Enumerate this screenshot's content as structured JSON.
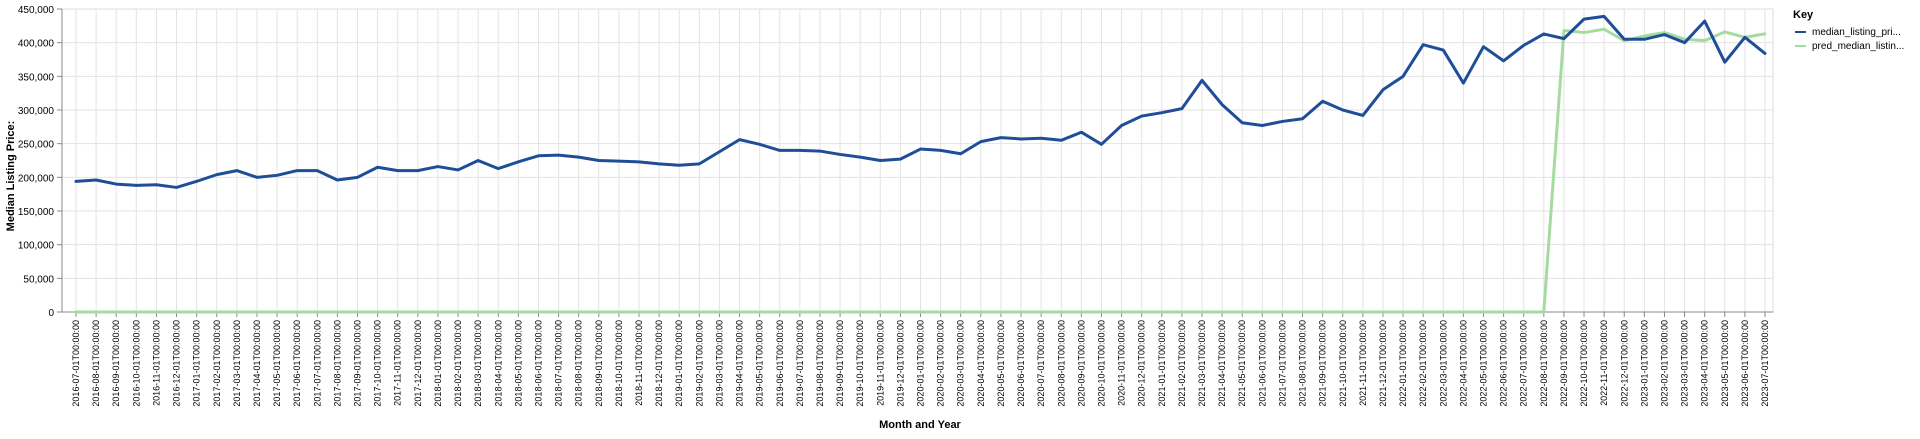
{
  "chart_data": {
    "type": "line",
    "title": "",
    "xlabel": "Month and Year",
    "ylabel": "Median Listing Price:",
    "ylim": [
      0,
      450000
    ],
    "yticks": [
      0,
      50000,
      100000,
      150000,
      200000,
      250000,
      300000,
      350000,
      400000,
      450000
    ],
    "ytick_labels": [
      "0",
      "50,000",
      "100,000",
      "150,000",
      "200,000",
      "250,000",
      "300,000",
      "350,000",
      "400,000",
      "450,000"
    ],
    "grid": true,
    "legend_title": "Key",
    "legend_position": "top-right",
    "x": [
      "2016-07-01T00:00:00",
      "2016-08-01T00:00:00",
      "2016-09-01T00:00:00",
      "2016-10-01T00:00:00",
      "2016-11-01T00:00:00",
      "2016-12-01T00:00:00",
      "2017-01-01T00:00:00",
      "2017-02-01T00:00:00",
      "2017-03-01T00:00:00",
      "2017-04-01T00:00:00",
      "2017-05-01T00:00:00",
      "2017-06-01T00:00:00",
      "2017-07-01T00:00:00",
      "2017-08-01T00:00:00",
      "2017-09-01T00:00:00",
      "2017-10-01T00:00:00",
      "2017-11-01T00:00:00",
      "2017-12-01T00:00:00",
      "2018-01-01T00:00:00",
      "2018-02-01T00:00:00",
      "2018-03-01T00:00:00",
      "2018-04-01T00:00:00",
      "2018-05-01T00:00:00",
      "2018-06-01T00:00:00",
      "2018-07-01T00:00:00",
      "2018-08-01T00:00:00",
      "2018-09-01T00:00:00",
      "2018-10-01T00:00:00",
      "2018-11-01T00:00:00",
      "2018-12-01T00:00:00",
      "2019-01-01T00:00:00",
      "2019-02-01T00:00:00",
      "2019-03-01T00:00:00",
      "2019-04-01T00:00:00",
      "2019-05-01T00:00:00",
      "2019-06-01T00:00:00",
      "2019-07-01T00:00:00",
      "2019-08-01T00:00:00",
      "2019-09-01T00:00:00",
      "2019-10-01T00:00:00",
      "2019-11-01T00:00:00",
      "2019-12-01T00:00:00",
      "2020-01-01T00:00:00",
      "2020-02-01T00:00:00",
      "2020-03-01T00:00:00",
      "2020-04-01T00:00:00",
      "2020-05-01T00:00:00",
      "2020-06-01T00:00:00",
      "2020-07-01T00:00:00",
      "2020-08-01T00:00:00",
      "2020-09-01T00:00:00",
      "2020-10-01T00:00:00",
      "2020-11-01T00:00:00",
      "2020-12-01T00:00:00",
      "2021-01-01T00:00:00",
      "2021-02-01T00:00:00",
      "2021-03-01T00:00:00",
      "2021-04-01T00:00:00",
      "2021-05-01T00:00:00",
      "2021-06-01T00:00:00",
      "2021-07-01T00:00:00",
      "2021-08-01T00:00:00",
      "2021-09-01T00:00:00",
      "2021-10-01T00:00:00",
      "2021-11-01T00:00:00",
      "2021-12-01T00:00:00",
      "2022-01-01T00:00:00",
      "2022-02-01T00:00:00",
      "2022-03-01T00:00:00",
      "2022-04-01T00:00:00",
      "2022-05-01T00:00:00",
      "2022-06-01T00:00:00",
      "2022-07-01T00:00:00",
      "2022-08-01T00:00:00",
      "2022-09-01T00:00:00",
      "2022-10-01T00:00:00",
      "2022-11-01T00:00:00",
      "2022-12-01T00:00:00",
      "2023-01-01T00:00:00",
      "2023-02-01T00:00:00",
      "2023-03-01T00:00:00",
      "2023-04-01T00:00:00",
      "2023-05-01T00:00:00",
      "2023-06-01T00:00:00",
      "2023-07-01T00:00:00"
    ],
    "series": [
      {
        "name": "median_listing_pri...",
        "color": "#1f4e99",
        "values": [
          194000,
          196000,
          190000,
          188000,
          189000,
          185000,
          194000,
          204000,
          210000,
          200000,
          203000,
          210000,
          210000,
          196000,
          200000,
          215000,
          210000,
          210000,
          216000,
          211000,
          225000,
          213000,
          223000,
          232000,
          233000,
          230000,
          225000,
          224000,
          223000,
          220000,
          218000,
          220000,
          238000,
          256000,
          249000,
          240000,
          240000,
          239000,
          234000,
          230000,
          225000,
          227000,
          242000,
          240000,
          235000,
          253000,
          259000,
          257000,
          258000,
          255000,
          267000,
          249000,
          277000,
          291000,
          296000,
          302000,
          344000,
          308000,
          281000,
          277000,
          283000,
          287000,
          313000,
          300000,
          292000,
          330000,
          350000,
          397000,
          389000,
          340000,
          394000,
          373000,
          396000,
          413000,
          406000,
          435000,
          439000,
          405000,
          405000,
          412000,
          400000,
          432000,
          371000,
          408000,
          384000
        ]
      },
      {
        "name": "pred_median_listin...",
        "color": "#a6dba0",
        "values": [
          0,
          0,
          0,
          0,
          0,
          0,
          0,
          0,
          0,
          0,
          0,
          0,
          0,
          0,
          0,
          0,
          0,
          0,
          0,
          0,
          0,
          0,
          0,
          0,
          0,
          0,
          0,
          0,
          0,
          0,
          0,
          0,
          0,
          0,
          0,
          0,
          0,
          0,
          0,
          0,
          0,
          0,
          0,
          0,
          0,
          0,
          0,
          0,
          0,
          0,
          0,
          0,
          0,
          0,
          0,
          0,
          0,
          0,
          0,
          0,
          0,
          0,
          0,
          0,
          0,
          0,
          0,
          0,
          0,
          0,
          0,
          0,
          0,
          0,
          418000,
          415000,
          420000,
          403000,
          410000,
          415000,
          405000,
          403000,
          416000,
          408000,
          413000
        ]
      }
    ]
  }
}
